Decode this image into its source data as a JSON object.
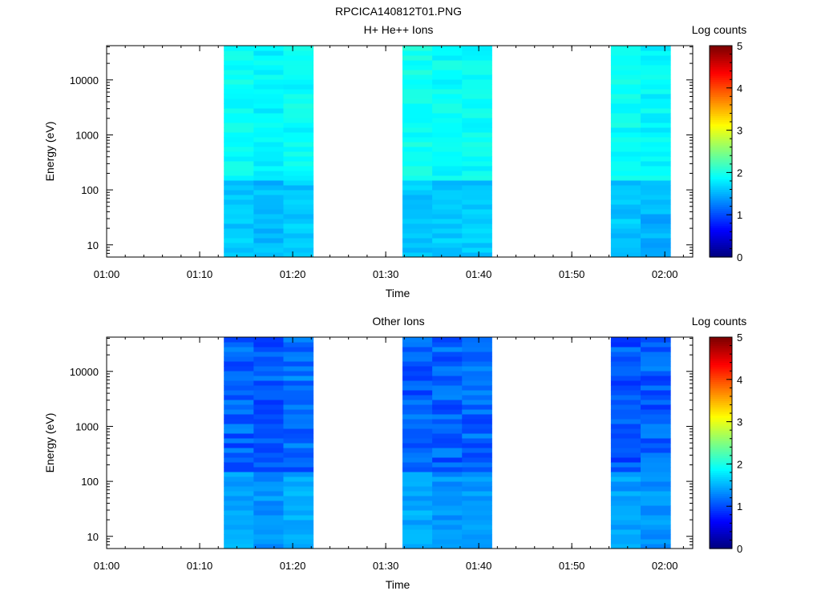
{
  "figure_title": "RPCICA140812T01.PNG",
  "colorbar": {
    "label": "Log counts",
    "ticks": [
      "0",
      "1",
      "2",
      "3",
      "4",
      "5"
    ],
    "range": [
      0,
      5
    ]
  },
  "chart_data": [
    {
      "type": "heatmap",
      "title": "H+ He++ Ions",
      "xlabel": "Time",
      "ylabel": "Energy (eV)",
      "x_ticks": [
        "01:00",
        "01:10",
        "01:20",
        "01:30",
        "01:40",
        "01:50",
        "02:00"
      ],
      "y_ticks": [
        "10",
        "100",
        "1000",
        "10000"
      ],
      "y_scale": "log",
      "ylim": [
        6,
        42000
      ],
      "xlim_minutes": [
        0,
        63
      ],
      "colorscale": "jet",
      "blocks": [
        {
          "start": "01:12.6",
          "end": "01:15.8",
          "base_value": 1.9,
          "low_energy_value": 1.6
        },
        {
          "start": "01:15.8",
          "end": "01:19.0",
          "base_value": 1.85,
          "low_energy_value": 1.55
        },
        {
          "start": "01:19.0",
          "end": "01:22.2",
          "base_value": 1.9,
          "low_energy_value": 1.6
        },
        {
          "start": "01:31.8",
          "end": "01:35.0",
          "base_value": 1.95,
          "low_energy_value": 1.6
        },
        {
          "start": "01:35.0",
          "end": "01:38.2",
          "base_value": 1.9,
          "low_energy_value": 1.6
        },
        {
          "start": "01:38.2",
          "end": "01:41.4",
          "base_value": 1.9,
          "low_energy_value": 1.6
        },
        {
          "start": "01:54.2",
          "end": "01:57.4",
          "base_value": 1.9,
          "low_energy_value": 1.6
        },
        {
          "start": "01:57.4",
          "end": "02:00.6",
          "base_value": 1.85,
          "low_energy_value": 1.5
        }
      ]
    },
    {
      "type": "heatmap",
      "title": "Other Ions",
      "xlabel": "Time",
      "ylabel": "Energy (eV)",
      "x_ticks": [
        "01:00",
        "01:10",
        "01:20",
        "01:30",
        "01:40",
        "01:50",
        "02:00"
      ],
      "y_ticks": [
        "10",
        "100",
        "1000",
        "10000"
      ],
      "y_scale": "log",
      "ylim": [
        6,
        42000
      ],
      "xlim_minutes": [
        0,
        63
      ],
      "colorscale": "jet",
      "blocks": [
        {
          "start": "01:12.6",
          "end": "01:15.8",
          "base_value": 1.1,
          "low_energy_value": 1.45
        },
        {
          "start": "01:15.8",
          "end": "01:19.0",
          "base_value": 1.05,
          "low_energy_value": 1.35
        },
        {
          "start": "01:19.0",
          "end": "01:22.2",
          "base_value": 1.15,
          "low_energy_value": 1.45
        },
        {
          "start": "01:31.8",
          "end": "01:35.0",
          "base_value": 1.1,
          "low_energy_value": 1.45
        },
        {
          "start": "01:35.0",
          "end": "01:38.2",
          "base_value": 1.1,
          "low_energy_value": 1.35
        },
        {
          "start": "01:38.2",
          "end": "01:41.4",
          "base_value": 1.1,
          "low_energy_value": 1.4
        },
        {
          "start": "01:54.2",
          "end": "01:57.4",
          "base_value": 1.05,
          "low_energy_value": 1.4
        },
        {
          "start": "01:57.4",
          "end": "02:00.6",
          "base_value": 1.1,
          "low_energy_value": 1.35
        }
      ]
    }
  ]
}
